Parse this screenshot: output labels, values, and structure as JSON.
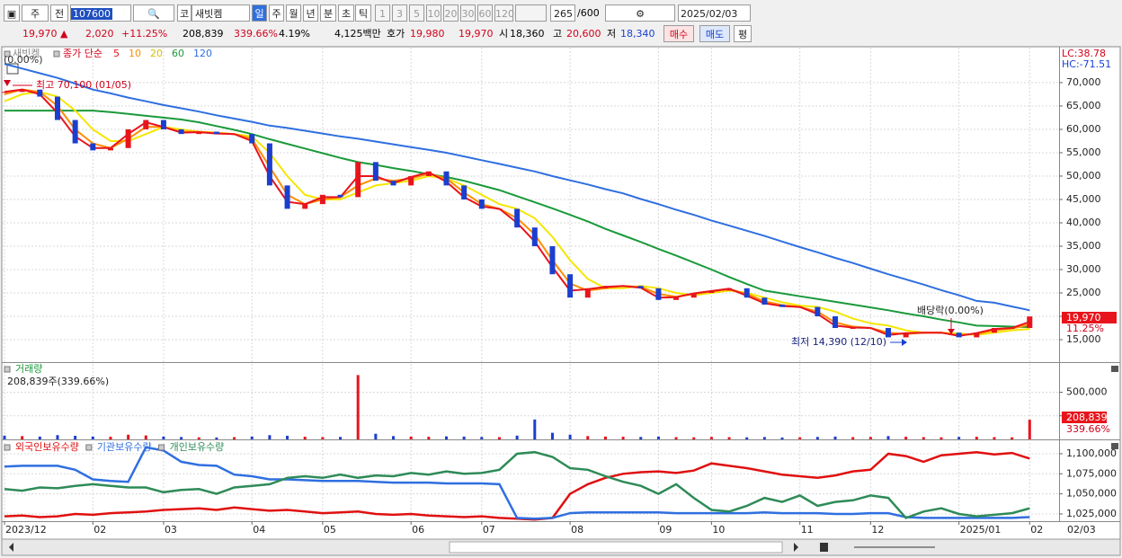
{
  "toolbar": {
    "view": "주",
    "compare": "전",
    "code": "107600",
    "market": "코",
    "name": "새빗켐",
    "periods": [
      "일",
      "주",
      "월",
      "년",
      "분",
      "초",
      "틱"
    ],
    "intervals": [
      "1",
      "3",
      "5",
      "10",
      "20",
      "30",
      "60",
      "120"
    ],
    "count": "265",
    "max": "/600",
    "date": "2025/02/03"
  },
  "quote": {
    "price": "19,970",
    "change": "2,020",
    "change_pct": "+11.25%",
    "volume": "208,839",
    "volume_ratio": "339.66%",
    "turnover": "4.19%",
    "amount": "4,125백만",
    "ask_label": "호가",
    "ask": "19,980",
    "bid": "19,970",
    "open_label": "시",
    "open": "18,360",
    "high_label": "고",
    "high": "20,600",
    "low_label": "저",
    "low": "18,340",
    "buy": "매수",
    "sell": "매도",
    "eval": "평"
  },
  "chart_data": [
    {
      "type": "candlestick",
      "ma_label": "종가 단순",
      "base_note": "(0.00%)",
      "lc": "LC:38.78",
      "hc": "HC:-71.51",
      "high_note": "최고 70,100 (01/05)",
      "low_note": "최저 14,390 (12/10)",
      "dividend_note": "배당락(0.00%)",
      "last_change_label": "11.25%",
      "x_end_label": "02/03",
      "up_color": "#e8141c",
      "down_color": "#1a3fd0",
      "grid": true,
      "categories": [
        "2023/12",
        null,
        null,
        null,
        null,
        "02",
        null,
        null,
        null,
        "03",
        null,
        null,
        null,
        null,
        "04",
        null,
        null,
        null,
        "05",
        null,
        null,
        null,
        null,
        "06",
        null,
        null,
        null,
        "07",
        null,
        null,
        null,
        null,
        "08",
        null,
        null,
        null,
        null,
        "09",
        null,
        null,
        "10",
        null,
        null,
        null,
        null,
        "11",
        null,
        null,
        null,
        "12",
        null,
        null,
        null,
        null,
        "2025/01",
        null,
        null,
        null,
        "02"
      ],
      "ylim": [
        10200,
        77100
      ],
      "yticks": [
        {
          "value": 15000,
          "label": "15,000"
        },
        {
          "value": 20000,
          "label": "20,000"
        },
        {
          "value": 25000,
          "label": "25,000"
        },
        {
          "value": 30000,
          "label": "30,000"
        },
        {
          "value": 35000,
          "label": "35,000"
        },
        {
          "value": 40000,
          "label": "40,000"
        },
        {
          "value": 45000,
          "label": "45,000"
        },
        {
          "value": 50000,
          "label": "50,000"
        },
        {
          "value": 55000,
          "label": "55,000"
        },
        {
          "value": 60000,
          "label": "60,000"
        },
        {
          "value": 65000,
          "label": "65,000"
        },
        {
          "value": 70000,
          "label": "70,000"
        }
      ],
      "series": [
        {
          "name": "새빗켐",
          "color": "#888888",
          "values": [
            68000,
            68500,
            67000,
            62000,
            57000,
            55500,
            56000,
            60000,
            62000,
            60000,
            59000,
            59500,
            59000,
            59000,
            57000,
            48000,
            43000,
            44000,
            46000,
            45500,
            53000,
            49000,
            48000,
            50000,
            51000,
            48000,
            45000,
            43000,
            43000,
            39000,
            35000,
            29000,
            24000,
            26000,
            26500,
            26500,
            26000,
            23500,
            24000,
            25000,
            25500,
            26000,
            24000,
            22500,
            22000,
            22000,
            20000,
            17500,
            17500,
            17500,
            15500,
            16500,
            16500,
            16500,
            15500,
            16500,
            17500,
            17500,
            19970
          ]
        },
        {
          "name": "5",
          "color": "#e8141c",
          "values": [
            68000,
            68500,
            67500,
            63500,
            58500,
            56000,
            56000,
            59000,
            61500,
            60500,
            59300,
            59400,
            59100,
            59000,
            57500,
            50000,
            44500,
            44000,
            45500,
            45500,
            50000,
            50000,
            48500,
            49800,
            50800,
            48800,
            45500,
            43500,
            43000,
            40000,
            36000,
            30500,
            25500,
            25800,
            26300,
            26500,
            26100,
            24000,
            24100,
            24900,
            25400,
            25900,
            24400,
            22800,
            22200,
            22000,
            20500,
            18000,
            17600,
            17500,
            16000,
            16400,
            16500,
            16500,
            15800,
            16400,
            17300,
            17500,
            18800
          ]
        },
        {
          "name": "10",
          "color": "#ff8c00",
          "values": [
            67500,
            68500,
            68000,
            65000,
            60000,
            57000,
            56000,
            58000,
            60500,
            60500,
            59500,
            59500,
            59200,
            59000,
            58000,
            52000,
            46000,
            44000,
            45000,
            45500,
            48000,
            49500,
            49000,
            49500,
            50500,
            49500,
            46500,
            44000,
            43000,
            41000,
            37500,
            32000,
            27000,
            25500,
            26000,
            26500,
            26300,
            24800,
            24200,
            24800,
            25300,
            25800,
            24800,
            23200,
            22400,
            22000,
            21000,
            18700,
            17800,
            17500,
            16500,
            16200,
            16500,
            16500,
            16000,
            16200,
            17000,
            17400,
            18200
          ]
        },
        {
          "name": "20",
          "color": "#f5e600",
          "values": [
            66000,
            67500,
            68000,
            67000,
            64000,
            60000,
            57500,
            57500,
            59000,
            60500,
            60000,
            59500,
            59300,
            59000,
            58500,
            55000,
            50000,
            46000,
            45000,
            45000,
            46500,
            48000,
            48500,
            49000,
            50000,
            49500,
            48000,
            46000,
            44000,
            43000,
            41000,
            37000,
            32000,
            28000,
            26000,
            26000,
            26500,
            26000,
            25000,
            24500,
            25000,
            25500,
            25000,
            24000,
            23000,
            22300,
            22000,
            21000,
            19500,
            18500,
            18000,
            17000,
            16500,
            16500,
            16300,
            16000,
            16500,
            17000,
            17300
          ]
        },
        {
          "name": "60",
          "color": "#1a9a3a",
          "values": [
            64000,
            64000,
            64000,
            64000,
            64000,
            64000,
            63700,
            63300,
            62900,
            62500,
            62100,
            61500,
            60700,
            59900,
            59000,
            57900,
            56900,
            55900,
            54900,
            53900,
            53000,
            52400,
            51700,
            51100,
            50400,
            49800,
            49000,
            48000,
            47000,
            45700,
            44400,
            43100,
            41700,
            40300,
            38700,
            37300,
            35900,
            34400,
            33000,
            31500,
            30000,
            28400,
            26900,
            25500,
            24900,
            24300,
            23700,
            23100,
            22500,
            21900,
            21300,
            20600,
            20000,
            19300,
            18700,
            18000,
            17900,
            17800,
            17700
          ]
        },
        {
          "name": "120",
          "color": "#2f6fe0",
          "values": [
            74000,
            73000,
            72000,
            71000,
            69800,
            68500,
            67700,
            66800,
            66000,
            65200,
            64500,
            63800,
            63000,
            62300,
            61600,
            60800,
            60300,
            59700,
            59100,
            58500,
            58000,
            57400,
            56800,
            56200,
            55600,
            55000,
            54200,
            53400,
            52600,
            51800,
            51000,
            50000,
            49100,
            48200,
            47200,
            46300,
            45100,
            44000,
            42800,
            41700,
            40500,
            39400,
            38300,
            37200,
            36000,
            34800,
            33700,
            32500,
            31400,
            30200,
            29000,
            27900,
            26800,
            25600,
            24500,
            23300,
            22900,
            22100,
            21300
          ]
        }
      ]
    },
    {
      "type": "bar",
      "title": "거래량",
      "info": "208,839주(339.66%)",
      "grid": true,
      "ylim": [
        0,
        800000
      ],
      "yticks": [
        {
          "value": 250000,
          "label": "250,000"
        },
        {
          "value": 500000,
          "label": "500,000"
        }
      ],
      "values": [
        40000,
        35000,
        30000,
        45000,
        38000,
        30000,
        28000,
        50000,
        42000,
        30000,
        25000,
        22000,
        20000,
        24000,
        30000,
        45000,
        38000,
        28000,
        24000,
        26000,
        682000,
        60000,
        35000,
        30000,
        28000,
        32000,
        30000,
        26000,
        24000,
        40000,
        211000,
        70000,
        50000,
        35000,
        30000,
        28000,
        26000,
        30000,
        24000,
        22000,
        26000,
        24000,
        22000,
        25000,
        20000,
        22000,
        26000,
        30000,
        24000,
        26000,
        35000,
        28000,
        24000,
        22000,
        26000,
        28000,
        24000,
        22000,
        208839
      ]
    },
    {
      "type": "line",
      "grid": true,
      "ylim": [
        1016000,
        1114500
      ],
      "yticks": [
        {
          "value": 1025000,
          "label": "1,025,000"
        },
        {
          "value": 1050000,
          "label": "1,050,000"
        },
        {
          "value": 1075000,
          "label": "1,075,000"
        },
        {
          "value": 1100000,
          "label": "1,100,000"
        }
      ],
      "series": [
        {
          "name": "외국인보유수량",
          "color": "#e01010",
          "values": [
            1022000,
            1023000,
            1021000,
            1022000,
            1025000,
            1024000,
            1026000,
            1027000,
            1028000,
            1030000,
            1031000,
            1032000,
            1030000,
            1033000,
            1031000,
            1029000,
            1030000,
            1028000,
            1026000,
            1027000,
            1028000,
            1025000,
            1024000,
            1025000,
            1023000,
            1022000,
            1021000,
            1022000,
            1020000,
            1019000,
            1018000,
            1020000,
            1050000,
            1062000,
            1070000,
            1075000,
            1077000,
            1078000,
            1076000,
            1079000,
            1088000,
            1085000,
            1082000,
            1078000,
            1074000,
            1072000,
            1070000,
            1073000,
            1078000,
            1080000,
            1100000,
            1097000,
            1090000,
            1098000,
            1100000,
            1102000,
            1099000,
            1101000,
            1094000
          ]
        },
        {
          "name": "기관보유수량",
          "color": "#2f6fe0",
          "values": [
            1084000,
            1085000,
            1085000,
            1085000,
            1080000,
            1068000,
            1066000,
            1065000,
            1108000,
            1104000,
            1090000,
            1086000,
            1085000,
            1074000,
            1072000,
            1068000,
            1068000,
            1067000,
            1066000,
            1066000,
            1066000,
            1065000,
            1064000,
            1064000,
            1064000,
            1063000,
            1063000,
            1063000,
            1062000,
            1020000,
            1019000,
            1020000,
            1026000,
            1027000,
            1027000,
            1027000,
            1027000,
            1027000,
            1026000,
            1026000,
            1026000,
            1026000,
            1026000,
            1027000,
            1026000,
            1026000,
            1026000,
            1025000,
            1025000,
            1026000,
            1026000,
            1021000,
            1020000,
            1020000,
            1020000,
            1020000,
            1020000,
            1020000,
            1021000
          ]
        },
        {
          "name": "개인보유수량",
          "color": "#2e8b57",
          "values": [
            1056000,
            1054000,
            1058000,
            1057000,
            1060000,
            1062000,
            1060000,
            1058000,
            1058000,
            1052000,
            1055000,
            1056000,
            1050000,
            1058000,
            1060000,
            1062000,
            1070000,
            1072000,
            1070000,
            1074000,
            1070000,
            1073000,
            1072000,
            1076000,
            1074000,
            1078000,
            1075000,
            1076000,
            1080000,
            1100000,
            1102000,
            1096000,
            1082000,
            1080000,
            1072000,
            1065000,
            1060000,
            1050000,
            1062000,
            1045000,
            1030000,
            1028000,
            1035000,
            1045000,
            1040000,
            1048000,
            1035000,
            1040000,
            1042000,
            1048000,
            1045000,
            1020000,
            1028000,
            1032000,
            1025000,
            1022000,
            1024000,
            1026000,
            1032000
          ]
        }
      ]
    }
  ]
}
